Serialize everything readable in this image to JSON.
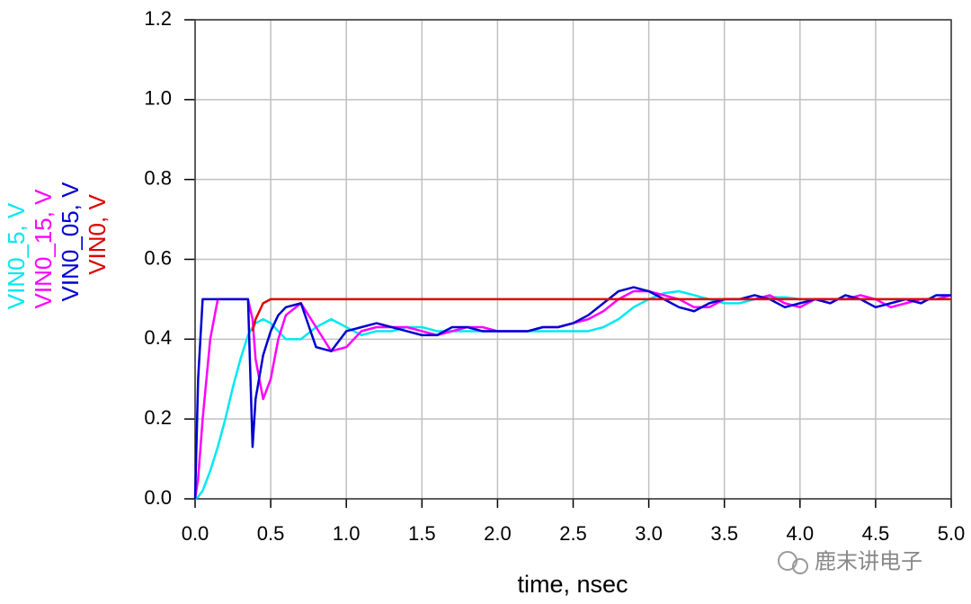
{
  "chart_data": {
    "type": "line",
    "xlabel": "time, nsec",
    "watermark": "鹿末讲电子",
    "x": [
      0,
      0.02,
      0.05,
      0.1,
      0.15,
      0.2,
      0.25,
      0.3,
      0.35,
      0.38,
      0.4,
      0.45,
      0.5,
      0.55,
      0.6,
      0.7,
      0.8,
      0.9,
      1.0,
      1.1,
      1.2,
      1.3,
      1.4,
      1.5,
      1.6,
      1.7,
      1.8,
      1.9,
      2.0,
      2.1,
      2.2,
      2.3,
      2.4,
      2.5,
      2.6,
      2.7,
      2.8,
      2.9,
      3.0,
      3.1,
      3.2,
      3.3,
      3.4,
      3.5,
      3.6,
      3.7,
      3.8,
      3.9,
      4.0,
      4.1,
      4.2,
      4.3,
      4.4,
      4.5,
      4.6,
      4.7,
      4.8,
      4.9,
      5.0
    ],
    "series": [
      {
        "name": "VIN0_5, V",
        "color": "#00e8f0",
        "values": [
          0,
          0.005,
          0.02,
          0.07,
          0.13,
          0.2,
          0.28,
          0.35,
          0.41,
          0.43,
          0.44,
          0.45,
          0.44,
          0.42,
          0.4,
          0.4,
          0.43,
          0.45,
          0.43,
          0.41,
          0.42,
          0.42,
          0.43,
          0.43,
          0.42,
          0.42,
          0.42,
          0.42,
          0.42,
          0.42,
          0.42,
          0.42,
          0.42,
          0.42,
          0.42,
          0.43,
          0.45,
          0.48,
          0.5,
          0.515,
          0.52,
          0.51,
          0.5,
          0.49,
          0.49,
          0.5,
          0.505,
          0.505,
          0.5,
          0.5,
          0.5,
          0.5,
          0.5,
          0.5,
          0.5,
          0.5,
          0.5,
          0.5,
          0.5
        ]
      },
      {
        "name": "VIN0_15, V",
        "color": "#ff00ff",
        "values": [
          0,
          0.05,
          0.2,
          0.4,
          0.5,
          0.5,
          0.5,
          0.5,
          0.5,
          0.45,
          0.35,
          0.25,
          0.3,
          0.4,
          0.46,
          0.49,
          0.43,
          0.37,
          0.38,
          0.42,
          0.43,
          0.43,
          0.43,
          0.42,
          0.41,
          0.42,
          0.43,
          0.43,
          0.42,
          0.42,
          0.42,
          0.43,
          0.43,
          0.44,
          0.45,
          0.47,
          0.5,
          0.52,
          0.52,
          0.51,
          0.5,
          0.48,
          0.48,
          0.5,
          0.5,
          0.5,
          0.51,
          0.49,
          0.48,
          0.5,
          0.5,
          0.5,
          0.51,
          0.5,
          0.48,
          0.49,
          0.5,
          0.5,
          0.51
        ]
      },
      {
        "name": "VIN0_05, V",
        "color": "#0000d0",
        "values": [
          0,
          0.3,
          0.5,
          0.5,
          0.5,
          0.5,
          0.5,
          0.5,
          0.5,
          0.13,
          0.25,
          0.36,
          0.42,
          0.46,
          0.48,
          0.49,
          0.38,
          0.37,
          0.42,
          0.43,
          0.44,
          0.43,
          0.42,
          0.41,
          0.41,
          0.43,
          0.43,
          0.42,
          0.42,
          0.42,
          0.42,
          0.43,
          0.43,
          0.44,
          0.46,
          0.49,
          0.52,
          0.53,
          0.52,
          0.5,
          0.48,
          0.47,
          0.49,
          0.5,
          0.5,
          0.51,
          0.5,
          0.48,
          0.49,
          0.5,
          0.49,
          0.51,
          0.5,
          0.48,
          0.49,
          0.5,
          0.49,
          0.51,
          0.51
        ]
      },
      {
        "name": "VIN0, V",
        "color": "#e00000",
        "values": [
          null,
          null,
          null,
          null,
          null,
          null,
          null,
          null,
          null,
          0.42,
          0.45,
          0.49,
          0.5,
          0.5,
          0.5,
          0.5,
          0.5,
          0.5,
          0.5,
          0.5,
          0.5,
          0.5,
          0.5,
          0.5,
          0.5,
          0.5,
          0.5,
          0.5,
          0.5,
          0.5,
          0.5,
          0.5,
          0.5,
          0.5,
          0.5,
          0.5,
          0.5,
          0.5,
          0.5,
          0.5,
          0.5,
          0.5,
          0.5,
          0.5,
          0.5,
          0.5,
          0.5,
          0.5,
          0.5,
          0.5,
          0.5,
          0.5,
          0.5,
          0.5,
          0.5,
          0.5,
          0.5,
          0.5,
          0.5
        ]
      }
    ],
    "xlim": [
      0,
      5
    ],
    "ylim": [
      0,
      1.2
    ],
    "xticks": [
      {
        "value": 0,
        "label": "0.0"
      },
      0.5,
      {
        "value": 1,
        "label": "1.0"
      },
      1.5,
      {
        "value": 2,
        "label": "2.0"
      },
      2.5,
      {
        "value": 3,
        "label": "3.0"
      },
      3.5,
      {
        "value": 4,
        "label": "4.0"
      },
      4.5,
      {
        "value": 5,
        "label": "5.0"
      }
    ],
    "yticks": [
      {
        "value": 0,
        "label": "0.0"
      },
      0.2,
      0.4,
      0.6,
      0.8,
      {
        "value": 1,
        "label": "1.0"
      },
      1.2
    ],
    "grid": true
  }
}
